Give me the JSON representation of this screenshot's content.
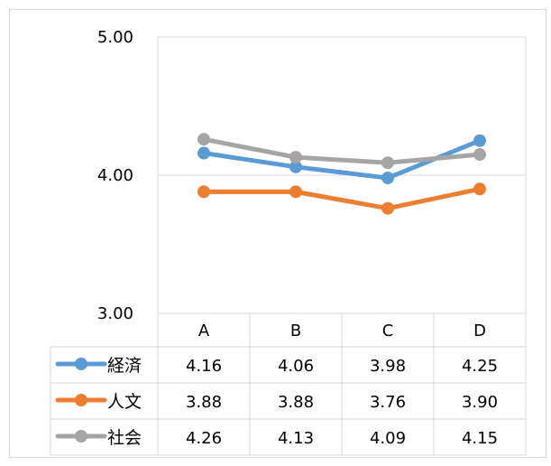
{
  "chart_data": {
    "type": "line",
    "categories": [
      "A",
      "B",
      "C",
      "D"
    ],
    "ylim": [
      3.0,
      5.0
    ],
    "yticks": [
      "5.00",
      "4.00",
      "3.00"
    ],
    "grid": true,
    "legend": "data-table",
    "series": [
      {
        "name": "経済",
        "values": [
          4.16,
          4.06,
          3.98,
          4.25
        ],
        "labels": [
          "4.16",
          "4.06",
          "3.98",
          "4.25"
        ],
        "color": "#5B9BD5"
      },
      {
        "name": "人文",
        "values": [
          3.88,
          3.88,
          3.76,
          3.9
        ],
        "labels": [
          "3.88",
          "3.88",
          "3.76",
          "3.90"
        ],
        "color": "#ED7D31"
      },
      {
        "name": "社会",
        "values": [
          4.26,
          4.13,
          4.09,
          4.15
        ],
        "labels": [
          "4.26",
          "4.13",
          "4.09",
          "4.15"
        ],
        "color": "#A5A5A5"
      }
    ]
  }
}
